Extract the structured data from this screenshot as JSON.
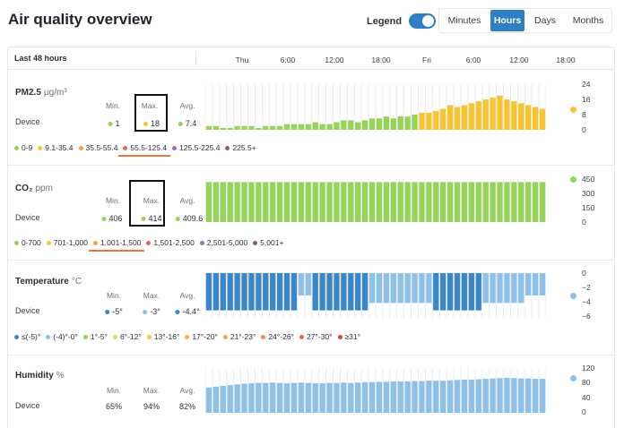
{
  "title": "Air quality overview",
  "legend": {
    "label": "Legend",
    "on": true
  },
  "tabs": [
    {
      "label": "Minutes",
      "active": false
    },
    {
      "label": "Hours",
      "active": true
    },
    {
      "label": "Days",
      "active": false
    },
    {
      "label": "Months",
      "active": false
    }
  ],
  "range_label": "Last 48 hours",
  "time_ticks": [
    "Thu",
    "6:00",
    "12:00",
    "18:00",
    "Fri",
    "6:00",
    "12:00",
    "18:00"
  ],
  "stat_headers": {
    "min": "Min.",
    "max": "Max.",
    "avg": "Avg."
  },
  "device_label": "Device",
  "sections": [
    {
      "id": "pm25",
      "title": "PM2.5",
      "unit": "µg/m³",
      "stats": {
        "min": "1",
        "max": "18",
        "avg": "7.4"
      },
      "stat_colors": {
        "min": "#97d35a",
        "max": "#f7c531",
        "avg": "#97d35a"
      },
      "y_ticks": [
        "24",
        "16",
        "8",
        "0"
      ],
      "right_marker_color": "#f7c531",
      "scale": [
        {
          "label": "0-9",
          "color": "#97d35a"
        },
        {
          "label": "9.1-35.4",
          "color": "#f7c531"
        },
        {
          "label": "35.5-55.4",
          "color": "#f0a24b"
        },
        {
          "label": "55.5-125.4",
          "color": "#e5665a",
          "underlined": true
        },
        {
          "label": "125.5-225.4",
          "color": "#9b6fb5"
        },
        {
          "label": "225.5+",
          "color": "#8c5a73"
        }
      ]
    },
    {
      "id": "co2",
      "title": "CO₂",
      "unit": "ppm",
      "stats": {
        "min": "406",
        "max": "414",
        "avg": "409.6"
      },
      "stat_colors": {
        "min": "#97d35a",
        "max": "#97d35a",
        "avg": "#97d35a"
      },
      "y_ticks": [
        "450",
        "300",
        "150",
        "0"
      ],
      "right_marker_color": "#97d35a",
      "scale": [
        {
          "label": "0-700",
          "color": "#97d35a"
        },
        {
          "label": "701-1,000",
          "color": "#f7c531"
        },
        {
          "label": "1,001-1,500",
          "color": "#f0a24b",
          "underlined": true
        },
        {
          "label": "1,501-2,500",
          "color": "#e5665a"
        },
        {
          "label": "2,501-5,000",
          "color": "#9b6fb5"
        },
        {
          "label": "5,001+",
          "color": "#8c5a73"
        }
      ]
    },
    {
      "id": "temp",
      "title": "Temperature",
      "unit": "°C",
      "stats": {
        "min": "-5°",
        "max": "-3°",
        "avg": "-4.4°"
      },
      "stat_colors": {
        "min": "#3a86c8",
        "max": "#8ec0e8",
        "avg": "#3a86c8"
      },
      "y_ticks": [
        "0",
        "−2",
        "−4",
        "−6"
      ],
      "right_marker_color": "#8ec0e8",
      "scale": [
        {
          "label": "≤(-5)°",
          "color": "#3a86c8"
        },
        {
          "label": "(-4)°-0°",
          "color": "#8ec0e8"
        },
        {
          "label": "1°-5°",
          "color": "#97d35a"
        },
        {
          "label": "6°-12°",
          "color": "#c9e06a"
        },
        {
          "label": "13°-16°",
          "color": "#f7c531"
        },
        {
          "label": "17°-20°",
          "color": "#f7b543"
        },
        {
          "label": "21°-23°",
          "color": "#f0a24b"
        },
        {
          "label": "24°-26°",
          "color": "#e98a5a"
        },
        {
          "label": "27°-30°",
          "color": "#e5665a"
        },
        {
          "label": "≥31°",
          "color": "#d9454a"
        }
      ]
    },
    {
      "id": "humidity",
      "title": "Humidity",
      "unit": "%",
      "stats": {
        "min": "65%",
        "max": "94%",
        "avg": "82%"
      },
      "y_ticks": [
        "120",
        "80",
        "40",
        "0"
      ],
      "right_marker_color": "#8ec0e8"
    }
  ],
  "chart_data": [
    {
      "type": "bar",
      "title": "PM2.5",
      "ylim": [
        0,
        24
      ],
      "values": [
        2,
        2,
        1,
        1,
        2,
        2,
        2,
        1,
        2,
        2,
        2,
        3,
        3,
        3,
        3,
        4,
        3,
        3,
        4,
        5,
        5,
        4,
        5,
        6,
        6,
        7,
        6,
        7,
        7,
        8,
        9,
        9,
        10,
        11,
        13,
        12,
        13,
        14,
        15,
        16,
        17,
        18,
        16,
        15,
        14,
        13,
        12,
        11
      ],
      "colors": [
        "#97d35a",
        "#97d35a",
        "#97d35a",
        "#97d35a",
        "#97d35a",
        "#97d35a",
        "#97d35a",
        "#97d35a",
        "#97d35a",
        "#97d35a",
        "#97d35a",
        "#97d35a",
        "#97d35a",
        "#97d35a",
        "#97d35a",
        "#97d35a",
        "#97d35a",
        "#97d35a",
        "#97d35a",
        "#97d35a",
        "#97d35a",
        "#97d35a",
        "#97d35a",
        "#97d35a",
        "#97d35a",
        "#97d35a",
        "#97d35a",
        "#97d35a",
        "#97d35a",
        "#97d35a",
        "#f7c531",
        "#f7c531",
        "#f7c531",
        "#f7c531",
        "#f7c531",
        "#f7c531",
        "#f7c531",
        "#f7c531",
        "#f7c531",
        "#f7c531",
        "#f7c531",
        "#f7c531",
        "#f7c531",
        "#f7c531",
        "#f7c531",
        "#f7c531",
        "#f7c531",
        "#f7c531"
      ]
    },
    {
      "type": "bar",
      "title": "CO₂",
      "ylim": [
        0,
        450
      ],
      "values": [
        410,
        410,
        410,
        410,
        410,
        410,
        410,
        410,
        410,
        410,
        410,
        410,
        410,
        410,
        410,
        410,
        410,
        410,
        410,
        410,
        410,
        410,
        410,
        410,
        410,
        410,
        410,
        410,
        410,
        410,
        410,
        410,
        410,
        410,
        410,
        410,
        410,
        410,
        410,
        410,
        410,
        410,
        410,
        410,
        410,
        410,
        410,
        410
      ],
      "color": "#97d35a"
    },
    {
      "type": "bar",
      "title": "Temperature",
      "ylim": [
        -6,
        0
      ],
      "values": [
        -5,
        -5,
        -5,
        -5,
        -5,
        -5,
        -5,
        -5,
        -5,
        -5,
        -5,
        -5,
        -5,
        -3,
        -3,
        -5,
        -5,
        -5,
        -5,
        -5,
        -5,
        -5,
        -5,
        -4,
        -4,
        -4,
        -4,
        -4,
        -4,
        -4,
        -4,
        -4,
        -5,
        -5,
        -5,
        -5,
        -5,
        -5,
        -5,
        -4,
        -4,
        -4,
        -4,
        -4,
        -4,
        -3,
        -3,
        -3
      ],
      "colors": [
        "#3a86c8",
        "#3a86c8",
        "#3a86c8",
        "#3a86c8",
        "#3a86c8",
        "#3a86c8",
        "#3a86c8",
        "#3a86c8",
        "#3a86c8",
        "#3a86c8",
        "#3a86c8",
        "#3a86c8",
        "#3a86c8",
        "#8ec0e8",
        "#8ec0e8",
        "#3a86c8",
        "#3a86c8",
        "#3a86c8",
        "#3a86c8",
        "#3a86c8",
        "#3a86c8",
        "#3a86c8",
        "#3a86c8",
        "#8ec0e8",
        "#8ec0e8",
        "#8ec0e8",
        "#8ec0e8",
        "#8ec0e8",
        "#8ec0e8",
        "#8ec0e8",
        "#8ec0e8",
        "#8ec0e8",
        "#3a86c8",
        "#3a86c8",
        "#3a86c8",
        "#3a86c8",
        "#3a86c8",
        "#3a86c8",
        "#3a86c8",
        "#8ec0e8",
        "#8ec0e8",
        "#8ec0e8",
        "#8ec0e8",
        "#8ec0e8",
        "#8ec0e8",
        "#8ec0e8",
        "#8ec0e8",
        "#8ec0e8"
      ]
    },
    {
      "type": "bar",
      "title": "Humidity",
      "ylim": [
        0,
        120
      ],
      "values": [
        68,
        70,
        72,
        74,
        76,
        78,
        79,
        80,
        80,
        81,
        80,
        79,
        80,
        81,
        80,
        79,
        79,
        80,
        80,
        81,
        80,
        81,
        82,
        82,
        83,
        83,
        84,
        84,
        84,
        85,
        85,
        86,
        86,
        86,
        87,
        88,
        89,
        89,
        90,
        91,
        92,
        93,
        94,
        93,
        92,
        92,
        91,
        91
      ],
      "color": "#8ec0e8"
    }
  ]
}
